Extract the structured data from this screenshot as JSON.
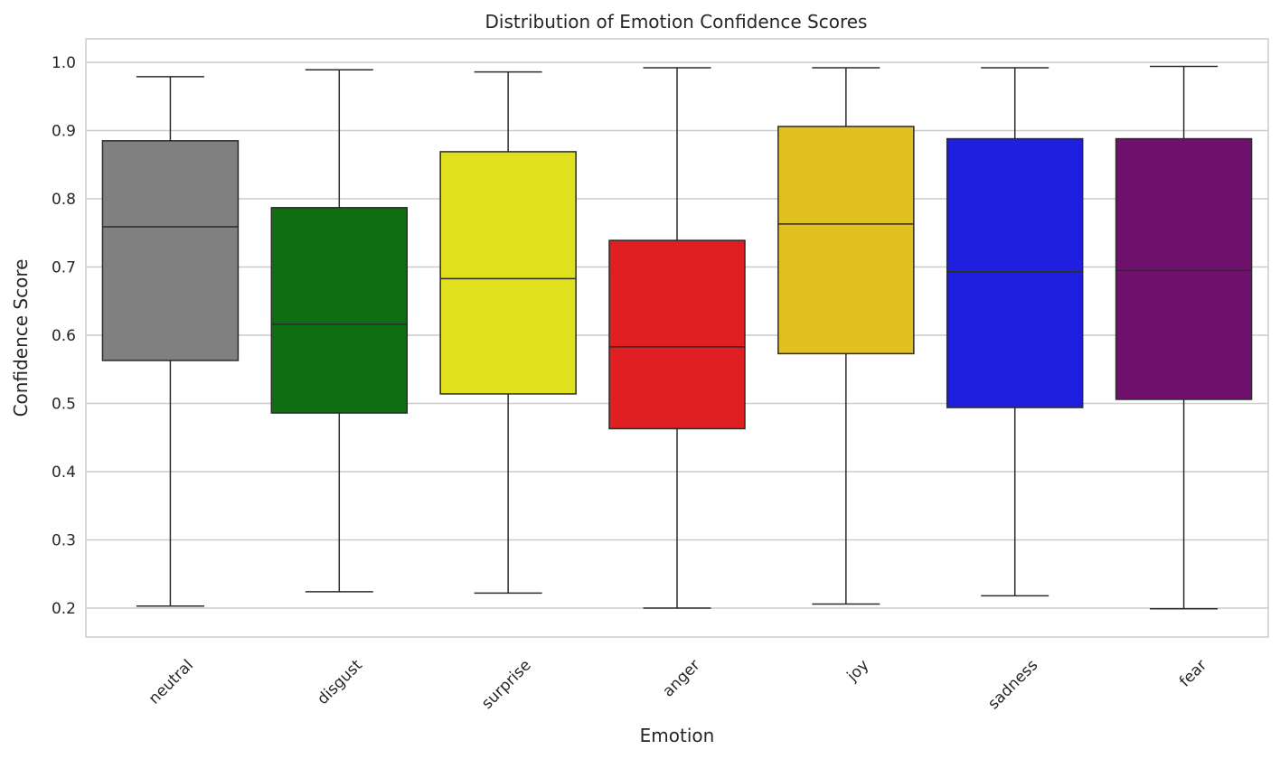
{
  "chart_data": {
    "type": "box",
    "title": "Distribution of Emotion Confidence Scores",
    "xlabel": "Emotion",
    "ylabel": "Confidence Score",
    "ylim": [
      0.16,
      1.035
    ],
    "yticks": [
      0.2,
      0.3,
      0.4,
      0.5,
      0.6,
      0.7,
      0.8,
      0.9,
      1.0
    ],
    "ytick_labels": [
      "0.2",
      "0.3",
      "0.4",
      "0.5",
      "0.6",
      "0.7",
      "0.8",
      "0.9",
      "1.0"
    ],
    "grid": true,
    "xtick_rotation": "45°",
    "categories": [
      "neutral",
      "disgust",
      "surprise",
      "anger",
      "joy",
      "sadness",
      "fear"
    ],
    "boxes": [
      {
        "name": "neutral",
        "color": "#808080",
        "whisker_low": 0.203,
        "q1": 0.563,
        "median": 0.759,
        "q3": 0.885,
        "whisker_high": 0.979
      },
      {
        "name": "disgust",
        "color": "#0d6f12",
        "whisker_low": 0.224,
        "q1": 0.486,
        "median": 0.616,
        "q3": 0.787,
        "whisker_high": 0.989
      },
      {
        "name": "surprise",
        "color": "#e0e01e",
        "whisker_low": 0.222,
        "q1": 0.514,
        "median": 0.683,
        "q3": 0.869,
        "whisker_high": 0.986
      },
      {
        "name": "anger",
        "color": "#df1f21",
        "whisker_low": 0.2,
        "q1": 0.463,
        "median": 0.583,
        "q3": 0.739,
        "whisker_high": 0.992
      },
      {
        "name": "joy",
        "color": "#e0c120",
        "whisker_low": 0.206,
        "q1": 0.573,
        "median": 0.763,
        "q3": 0.906,
        "whisker_high": 0.992
      },
      {
        "name": "sadness",
        "color": "#1f1fe0",
        "whisker_low": 0.218,
        "q1": 0.494,
        "median": 0.693,
        "q3": 0.888,
        "whisker_high": 0.992
      },
      {
        "name": "fear",
        "color": "#70106d",
        "whisker_low": 0.199,
        "q1": 0.506,
        "median": 0.695,
        "q3": 0.888,
        "whisker_high": 0.994
      }
    ]
  }
}
